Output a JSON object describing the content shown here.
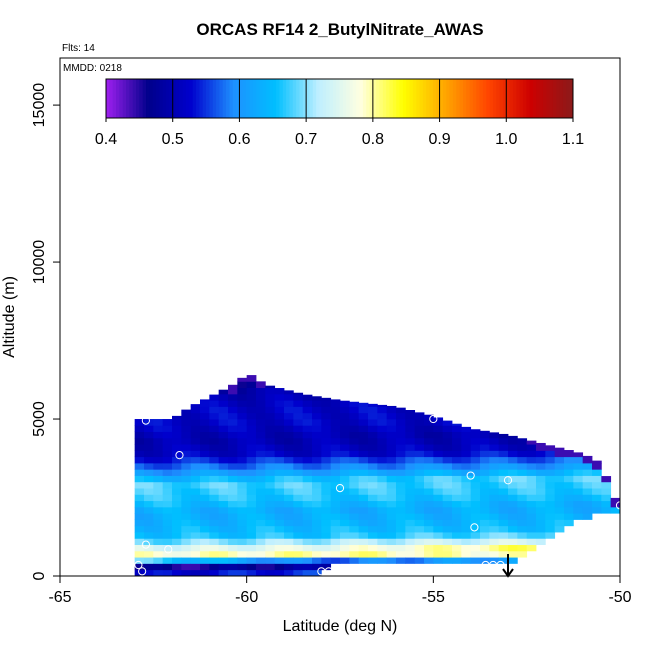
{
  "chart_data": {
    "type": "heatmap",
    "title": "ORCAS RF14 2_ButylNitrate_AWAS",
    "notes": {
      "flights": "Flts: 14",
      "date": "MMDD: 0218"
    },
    "xlabel": "Latitude (deg N)",
    "ylabel": "Altitude (m)",
    "xlim": [
      -65,
      -50
    ],
    "ylim": [
      0,
      16500
    ],
    "x_ticks": [
      -65,
      -60,
      -55,
      -50
    ],
    "x_tick_labels": [
      "-65",
      "-60",
      "-55",
      "-50"
    ],
    "y_ticks": [
      0,
      5000,
      10000,
      15000
    ],
    "y_tick_labels": [
      "0",
      "5000",
      "10000",
      "15000"
    ],
    "colorbar": {
      "min": 0.4,
      "max": 1.1,
      "ticks": [
        0.4,
        0.5,
        0.6,
        0.7,
        0.8,
        0.9,
        1.0,
        1.1
      ],
      "tick_labels": [
        "0.4",
        "0.5",
        "0.6",
        "0.7",
        "0.8",
        "0.9",
        "1.0",
        "1.1"
      ],
      "colors": [
        "#a020f0",
        "#00008b",
        "#0000cd",
        "#1e90ff",
        "#00bfff",
        "#bfefff",
        "#ffffe0",
        "#ffff00",
        "#ffa500",
        "#ff4500",
        "#cd0000",
        "#8b1a1a"
      ]
    },
    "grid": {
      "lat_start": -63.0,
      "lat_end": -50.0,
      "lat_step": 0.25,
      "alt_step": 200
    },
    "envelope": [
      {
        "lat": -63.0,
        "top": 5000
      },
      {
        "lat": -62.0,
        "top": 5000
      },
      {
        "lat": -61.5,
        "top": 5400
      },
      {
        "lat": -61.0,
        "top": 5700
      },
      {
        "lat": -60.2,
        "top": 6200
      },
      {
        "lat": -60.0,
        "top": 6500
      },
      {
        "lat": -59.5,
        "top": 6100
      },
      {
        "lat": -58.5,
        "top": 5800
      },
      {
        "lat": -57.5,
        "top": 5600
      },
      {
        "lat": -56.0,
        "top": 5400
      },
      {
        "lat": -55.0,
        "top": 5100
      },
      {
        "lat": -54.0,
        "top": 4700
      },
      {
        "lat": -53.0,
        "top": 4500
      },
      {
        "lat": -52.0,
        "top": 4200
      },
      {
        "lat": -51.0,
        "top": 3900
      },
      {
        "lat": -50.5,
        "top": 3600
      },
      {
        "lat": -50.2,
        "top": 2600
      },
      {
        "lat": -50.0,
        "top": 2300
      }
    ],
    "bottom_envelope": [
      {
        "lat": -63.0,
        "bottom": 0
      },
      {
        "lat": -58.0,
        "bottom": 0
      },
      {
        "lat": -57.5,
        "bottom": 300
      },
      {
        "lat": -53.0,
        "bottom": 300
      },
      {
        "lat": -52.0,
        "bottom": 1000
      },
      {
        "lat": -51.0,
        "bottom": 1700
      },
      {
        "lat": -50.0,
        "bottom": 2000
      }
    ],
    "profile": [
      {
        "alt": 0,
        "value": 0.55
      },
      {
        "alt": 300,
        "value": 0.45
      },
      {
        "alt": 600,
        "value": 0.8
      },
      {
        "alt": 900,
        "value": 0.74
      },
      {
        "alt": 1200,
        "value": 0.66
      },
      {
        "alt": 1600,
        "value": 0.64
      },
      {
        "alt": 2000,
        "value": 0.63
      },
      {
        "alt": 2400,
        "value": 0.66
      },
      {
        "alt": 2900,
        "value": 0.68
      },
      {
        "alt": 3300,
        "value": 0.6
      },
      {
        "alt": 3800,
        "value": 0.52
      },
      {
        "alt": 4300,
        "value": 0.5
      },
      {
        "alt": 4800,
        "value": 0.52
      },
      {
        "alt": 5300,
        "value": 0.52
      },
      {
        "alt": 5800,
        "value": 0.5
      },
      {
        "alt": 6200,
        "value": 0.45
      }
    ],
    "samples": [
      {
        "lat": -62.7,
        "alt": 4950
      },
      {
        "lat": -61.8,
        "alt": 3850
      },
      {
        "lat": -57.5,
        "alt": 2800
      },
      {
        "lat": -55.0,
        "alt": 5000
      },
      {
        "lat": -54.0,
        "alt": 3200
      },
      {
        "lat": -53.0,
        "alt": 3050
      },
      {
        "lat": -50.6,
        "alt": 3950
      },
      {
        "lat": -50.0,
        "alt": 2250
      },
      {
        "lat": -53.9,
        "alt": 1550
      },
      {
        "lat": -62.7,
        "alt": 1000
      },
      {
        "lat": -62.1,
        "alt": 850
      },
      {
        "lat": -62.9,
        "alt": 350
      },
      {
        "lat": -62.8,
        "alt": 150
      },
      {
        "lat": -58.0,
        "alt": 150
      },
      {
        "lat": -57.8,
        "alt": 150
      },
      {
        "lat": -53.6,
        "alt": 350
      },
      {
        "lat": -53.4,
        "alt": 350
      },
      {
        "lat": -53.2,
        "alt": 350
      }
    ],
    "arrow": {
      "lat": -53.0,
      "alt_from": 700,
      "alt_to": 0
    }
  }
}
